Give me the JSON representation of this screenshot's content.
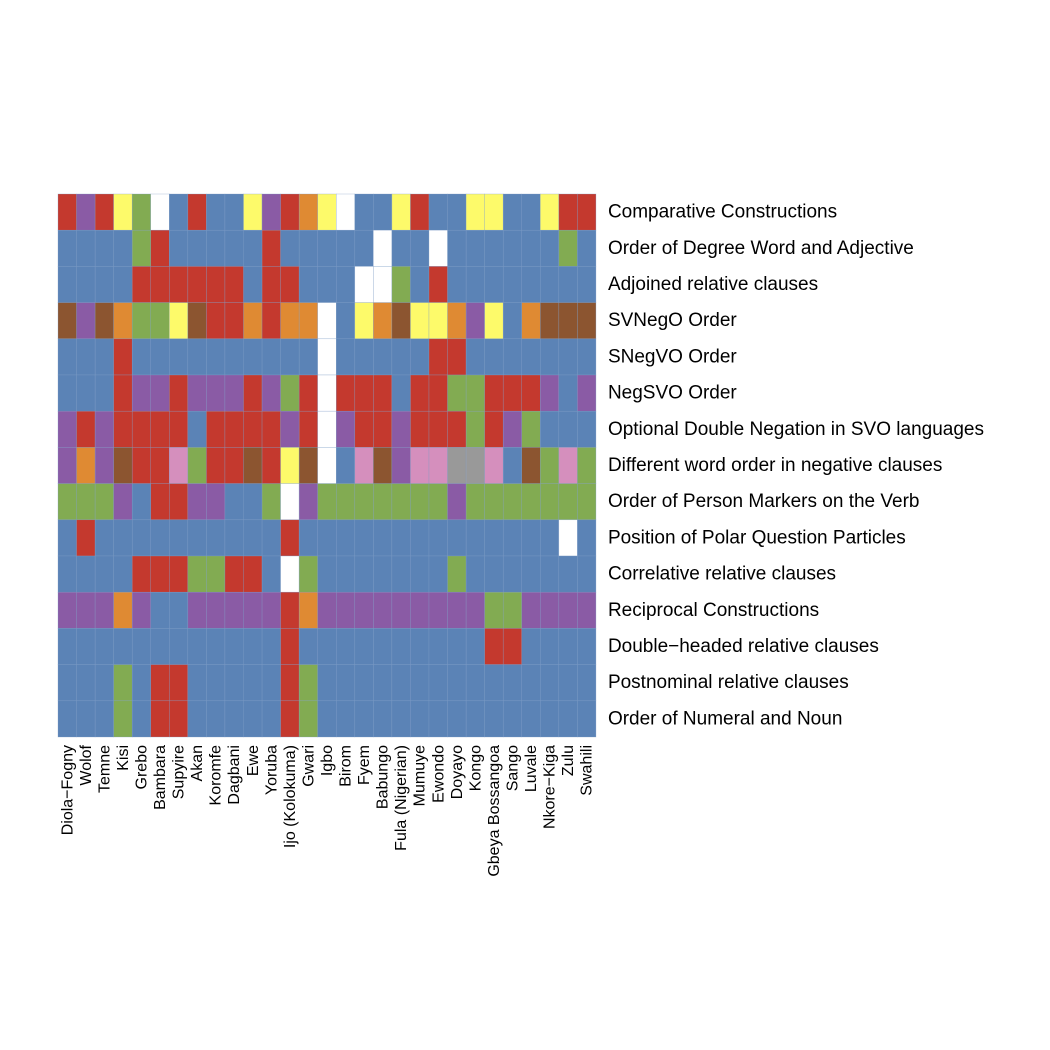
{
  "chart_data": {
    "type": "heatmap",
    "title": "",
    "xlabel": "",
    "ylabel": "",
    "columns": [
      "Diola−Fogny",
      "Wolof",
      "Temne",
      "Kisi",
      "Grebo",
      "Bambara",
      "Supyire",
      "Akan",
      "Koromfe",
      "Dagbani",
      "Ewe",
      "Yoruba",
      "Ijo (Kolokuma)",
      "Gwari",
      "Igbo",
      "Birom",
      "Fyem",
      "Babungo",
      "Fula (Nigerian)",
      "Mumuye",
      "Ewondo",
      "Doyayo",
      "Kongo",
      "Gbeya Bossangoa",
      "Sango",
      "Luvale",
      "Nkore−Kiga",
      "Zulu",
      "Swahili"
    ],
    "rows": [
      "Comparative Constructions",
      "Order of Degree Word and Adjective",
      "Adjoined relative clauses",
      "SVNegO Order",
      "SNegVO Order",
      "NegSVO Order",
      "Optional Double Negation in SVO languages",
      "Different word order in negative clauses",
      "Order of Person Markers on the Verb",
      "Position of Polar Question Particles",
      "Correlative relative clauses",
      "Reciprocal Constructions",
      "Double−headed relative clauses",
      "Postnominal relative clauses",
      "Order of Numeral and Noun"
    ],
    "colors": {
      "B": "#5b83b6",
      "R": "#c4392e",
      "G": "#82ab52",
      "P": "#8a5ba5",
      "Y": "#fdfa6a",
      "O": "#df8a33",
      "N": "#8c5530",
      "K": "#d58fbd",
      "A": "#999999",
      "W": "#ffffff"
    },
    "cells": [
      "RPRYGWBRBBYPROYWBBYRBBYYBBYRR",
      "BBBBGRBBBBBRBBBBBWBBWBBBBBBGB",
      "BBBBRRRRRRBRRBBBWWGBRBBBBBBBB",
      "NPNOGGYNRROROOWBYONYYOPYBONNN",
      "BBBRBBBBBBBBBBWBBBBBRRBBBBBBB",
      "BBBRPPRPPPRPGRWRRRBRRGGRRRPBP",
      "PRPRRRRBRRRRPRWPRRPRRRGRPGBBB",
      "POPNRRKGRRNRYNWBKNPKKAAKBNGKG",
      "GGGPBRRPPBBGWPGGGGGGGPGGGGGGG",
      "BRBBBBBBBBBBRBBBBBBBBBBBBBBWB",
      "BBBBRRRGGRRBWGBBBBBBBGBBBBBBB",
      "PPPOPBBPPPPPROPPPPPPPPPGGPPPP",
      "BBBBBBBBBBBBRBBBBBBBBBBRRBBBB",
      "BBBGBRRBBBBBRGBBBBBBBBBBBBBBB",
      "BBBGBRRBBBBBRGBBBBBBBBBBBBBBB"
    ]
  }
}
